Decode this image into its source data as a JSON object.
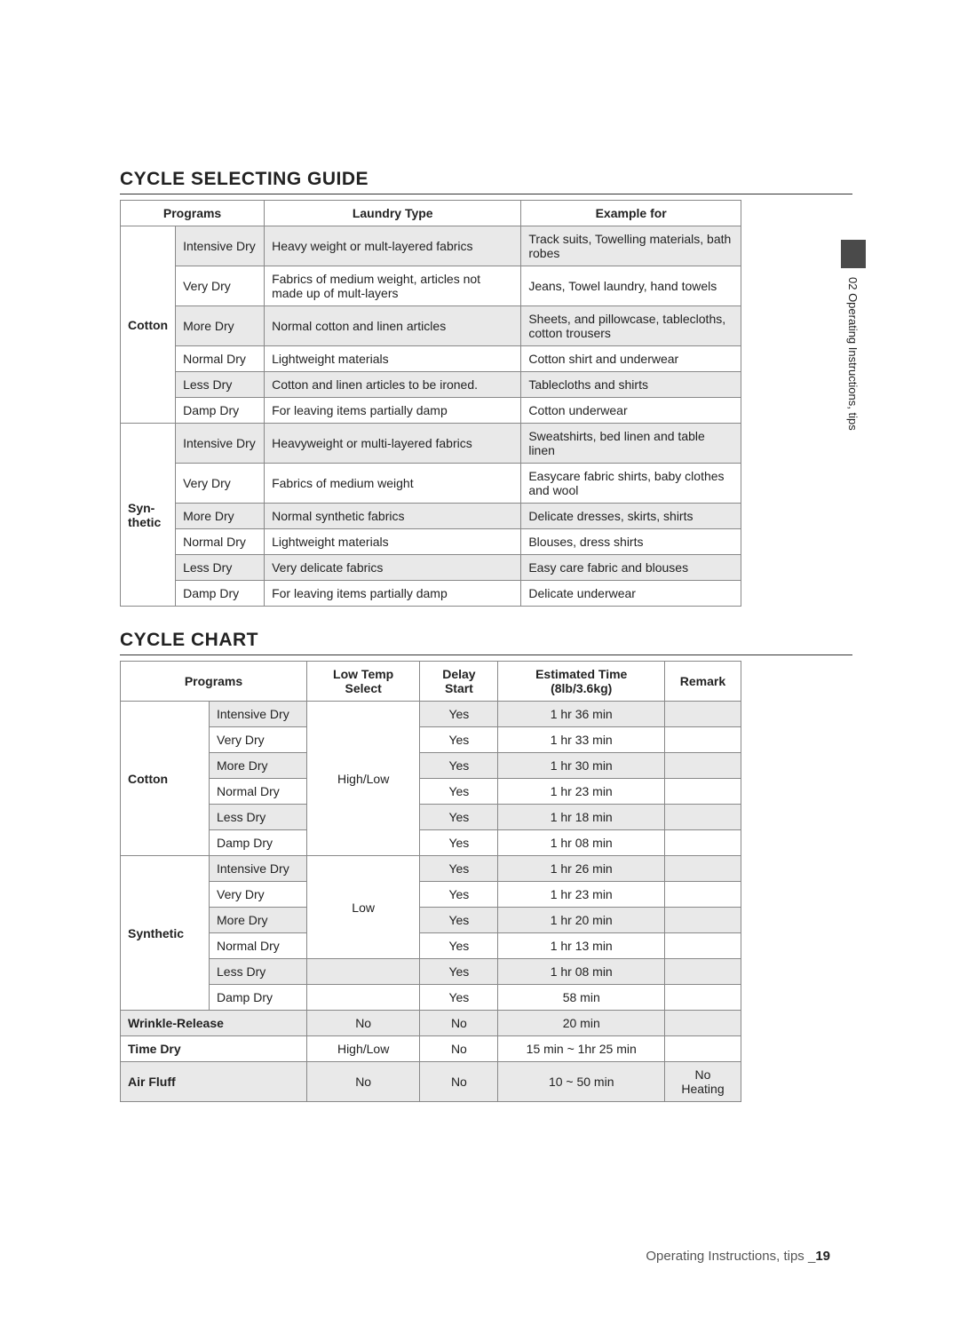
{
  "sideTab": {
    "label": "02 Operating Instructions, tips"
  },
  "guide": {
    "title": "CYCLE SELECTING GUIDE",
    "headers": [
      "Programs",
      "Laundry Type",
      "Example for"
    ],
    "groups": [
      {
        "category": "Cotton",
        "rows": [
          {
            "program": "Intensive Dry",
            "laundry": "Heavy weight or mult-layered fabrics",
            "example": "Track suits, Towelling materials, bath robes",
            "alt": true
          },
          {
            "program": "Very Dry",
            "laundry": "Fabrics of medium weight, articles not made up of mult-layers",
            "example": "Jeans, Towel laundry, hand towels",
            "alt": false
          },
          {
            "program": "More Dry",
            "laundry": "Normal cotton and linen articles",
            "example": "Sheets, and pillowcase, tablecloths, cotton trousers",
            "alt": true
          },
          {
            "program": "Normal Dry",
            "laundry": "Lightweight materials",
            "example": "Cotton shirt and underwear",
            "alt": false
          },
          {
            "program": "Less Dry",
            "laundry": "Cotton and linen articles to be ironed.",
            "example": "Tablecloths and shirts",
            "alt": true
          },
          {
            "program": "Damp Dry",
            "laundry": "For leaving items partially damp",
            "example": "Cotton underwear",
            "alt": false
          }
        ]
      },
      {
        "category": "Syn-thetic",
        "rows": [
          {
            "program": "Intensive Dry",
            "laundry": "Heavyweight or multi-layered fabrics",
            "example": "Sweatshirts, bed linen and table linen",
            "alt": true
          },
          {
            "program": "Very Dry",
            "laundry": "Fabrics of medium weight",
            "example": "Easycare fabric shirts, baby clothes and wool",
            "alt": false
          },
          {
            "program": "More Dry",
            "laundry": "Normal synthetic fabrics",
            "example": "Delicate dresses, skirts, shirts",
            "alt": true
          },
          {
            "program": "Normal Dry",
            "laundry": "Lightweight materials",
            "example": "Blouses, dress shirts",
            "alt": false
          },
          {
            "program": "Less Dry",
            "laundry": "Very delicate fabrics",
            "example": "Easy care fabric and blouses",
            "alt": true
          },
          {
            "program": "Damp Dry",
            "laundry": "For leaving items partially damp",
            "example": "Delicate underwear",
            "alt": false
          }
        ]
      }
    ]
  },
  "chart": {
    "title": "CYCLE CHART",
    "headers": [
      "Programs",
      "Low Temp Select",
      "Delay Start",
      "Estimated Time (8lb/3.6kg)",
      "Remark"
    ],
    "groups": [
      {
        "category": "Cotton",
        "lowTemp": "High/Low",
        "lowTempSpan": 6,
        "rows": [
          {
            "program": "Intensive Dry",
            "delay": "Yes",
            "time": "1 hr 36 min",
            "remark": "",
            "alt": true
          },
          {
            "program": "Very Dry",
            "delay": "Yes",
            "time": "1 hr 33 min",
            "remark": "",
            "alt": false
          },
          {
            "program": "More Dry",
            "delay": "Yes",
            "time": "1 hr 30 min",
            "remark": "",
            "alt": true
          },
          {
            "program": "Normal Dry",
            "delay": "Yes",
            "time": "1 hr 23 min",
            "remark": "",
            "alt": false
          },
          {
            "program": "Less Dry",
            "delay": "Yes",
            "time": "1 hr 18 min",
            "remark": "",
            "alt": true
          },
          {
            "program": "Damp Dry",
            "delay": "Yes",
            "time": "1 hr 08 min",
            "remark": "",
            "alt": false
          }
        ]
      },
      {
        "category": "Synthetic",
        "lowTemp": "Low",
        "lowTempSpan": 4,
        "rows": [
          {
            "program": "Intensive Dry",
            "delay": "Yes",
            "time": "1 hr 26 min",
            "remark": "",
            "alt": true
          },
          {
            "program": "Very Dry",
            "delay": "Yes",
            "time": "1 hr 23 min",
            "remark": "",
            "alt": false
          },
          {
            "program": "More Dry",
            "delay": "Yes",
            "time": "1 hr 20 min",
            "remark": "",
            "alt": true
          },
          {
            "program": "Normal Dry",
            "delay": "Yes",
            "time": "1 hr 13 min",
            "remark": "",
            "alt": false
          },
          {
            "program": "Less Dry",
            "lowTemp": "",
            "delay": "Yes",
            "time": "1 hr 08 min",
            "remark": "",
            "alt": true,
            "ownLow": true
          },
          {
            "program": "Damp Dry",
            "lowTemp": "",
            "delay": "Yes",
            "time": "58 min",
            "remark": "",
            "alt": false,
            "ownLow": true
          }
        ]
      }
    ],
    "singles": [
      {
        "program": "Wrinkle-Release",
        "lowTemp": "No",
        "delay": "No",
        "time": "20 min",
        "remark": "",
        "alt": true
      },
      {
        "program": "Time Dry",
        "lowTemp": "High/Low",
        "delay": "No",
        "time": "15 min ~ 1hr 25 min",
        "remark": "",
        "alt": false
      },
      {
        "program": "Air Fluff",
        "lowTemp": "No",
        "delay": "No",
        "time": "10 ~ 50 min",
        "remark": "No Heating",
        "alt": true
      }
    ]
  },
  "footer": {
    "text": "Operating Instructions, tips _",
    "page": "19"
  }
}
